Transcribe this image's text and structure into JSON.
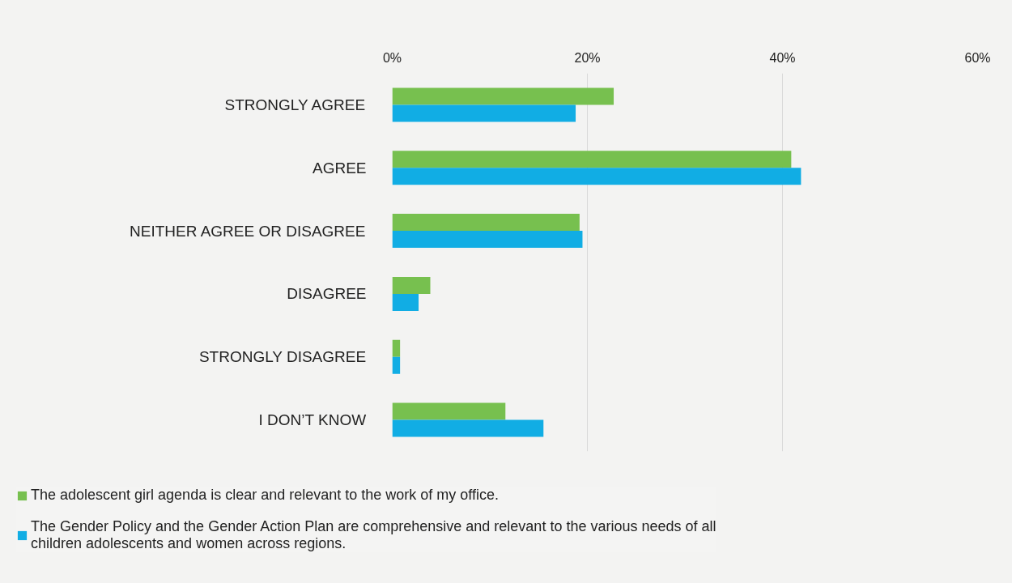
{
  "chart_data": {
    "type": "bar",
    "orientation": "horizontal",
    "categories": [
      "STRONGLY AGREE",
      "AGREE",
      "NEITHER AGREE OR DISAGREE",
      "DISAGREE",
      "STRONGLY DISAGREE",
      "I DON’T KNOW"
    ],
    "series": [
      {
        "name": "The adolescent girl agenda is clear and relevant to the work of my office.",
        "color": "#77c04f",
        "values": [
          22.7,
          40.9,
          19.2,
          3.9,
          0.8,
          11.6
        ]
      },
      {
        "name": "The Gender Policy and the Gender Action Plan are comprehensive and relevant to the various needs of all children adolescents and women across regions.",
        "color": "#11ade4",
        "values": [
          18.8,
          41.9,
          19.5,
          2.7,
          0.8,
          15.5
        ]
      }
    ],
    "xlim": [
      0,
      60
    ],
    "xticks": [
      {
        "value": 0,
        "label": "0%"
      },
      {
        "value": 20,
        "label": "20%"
      },
      {
        "value": 40,
        "label": "40%"
      },
      {
        "value": 60,
        "label": "60%"
      }
    ],
    "grid": "x",
    "legend": "bottom"
  }
}
